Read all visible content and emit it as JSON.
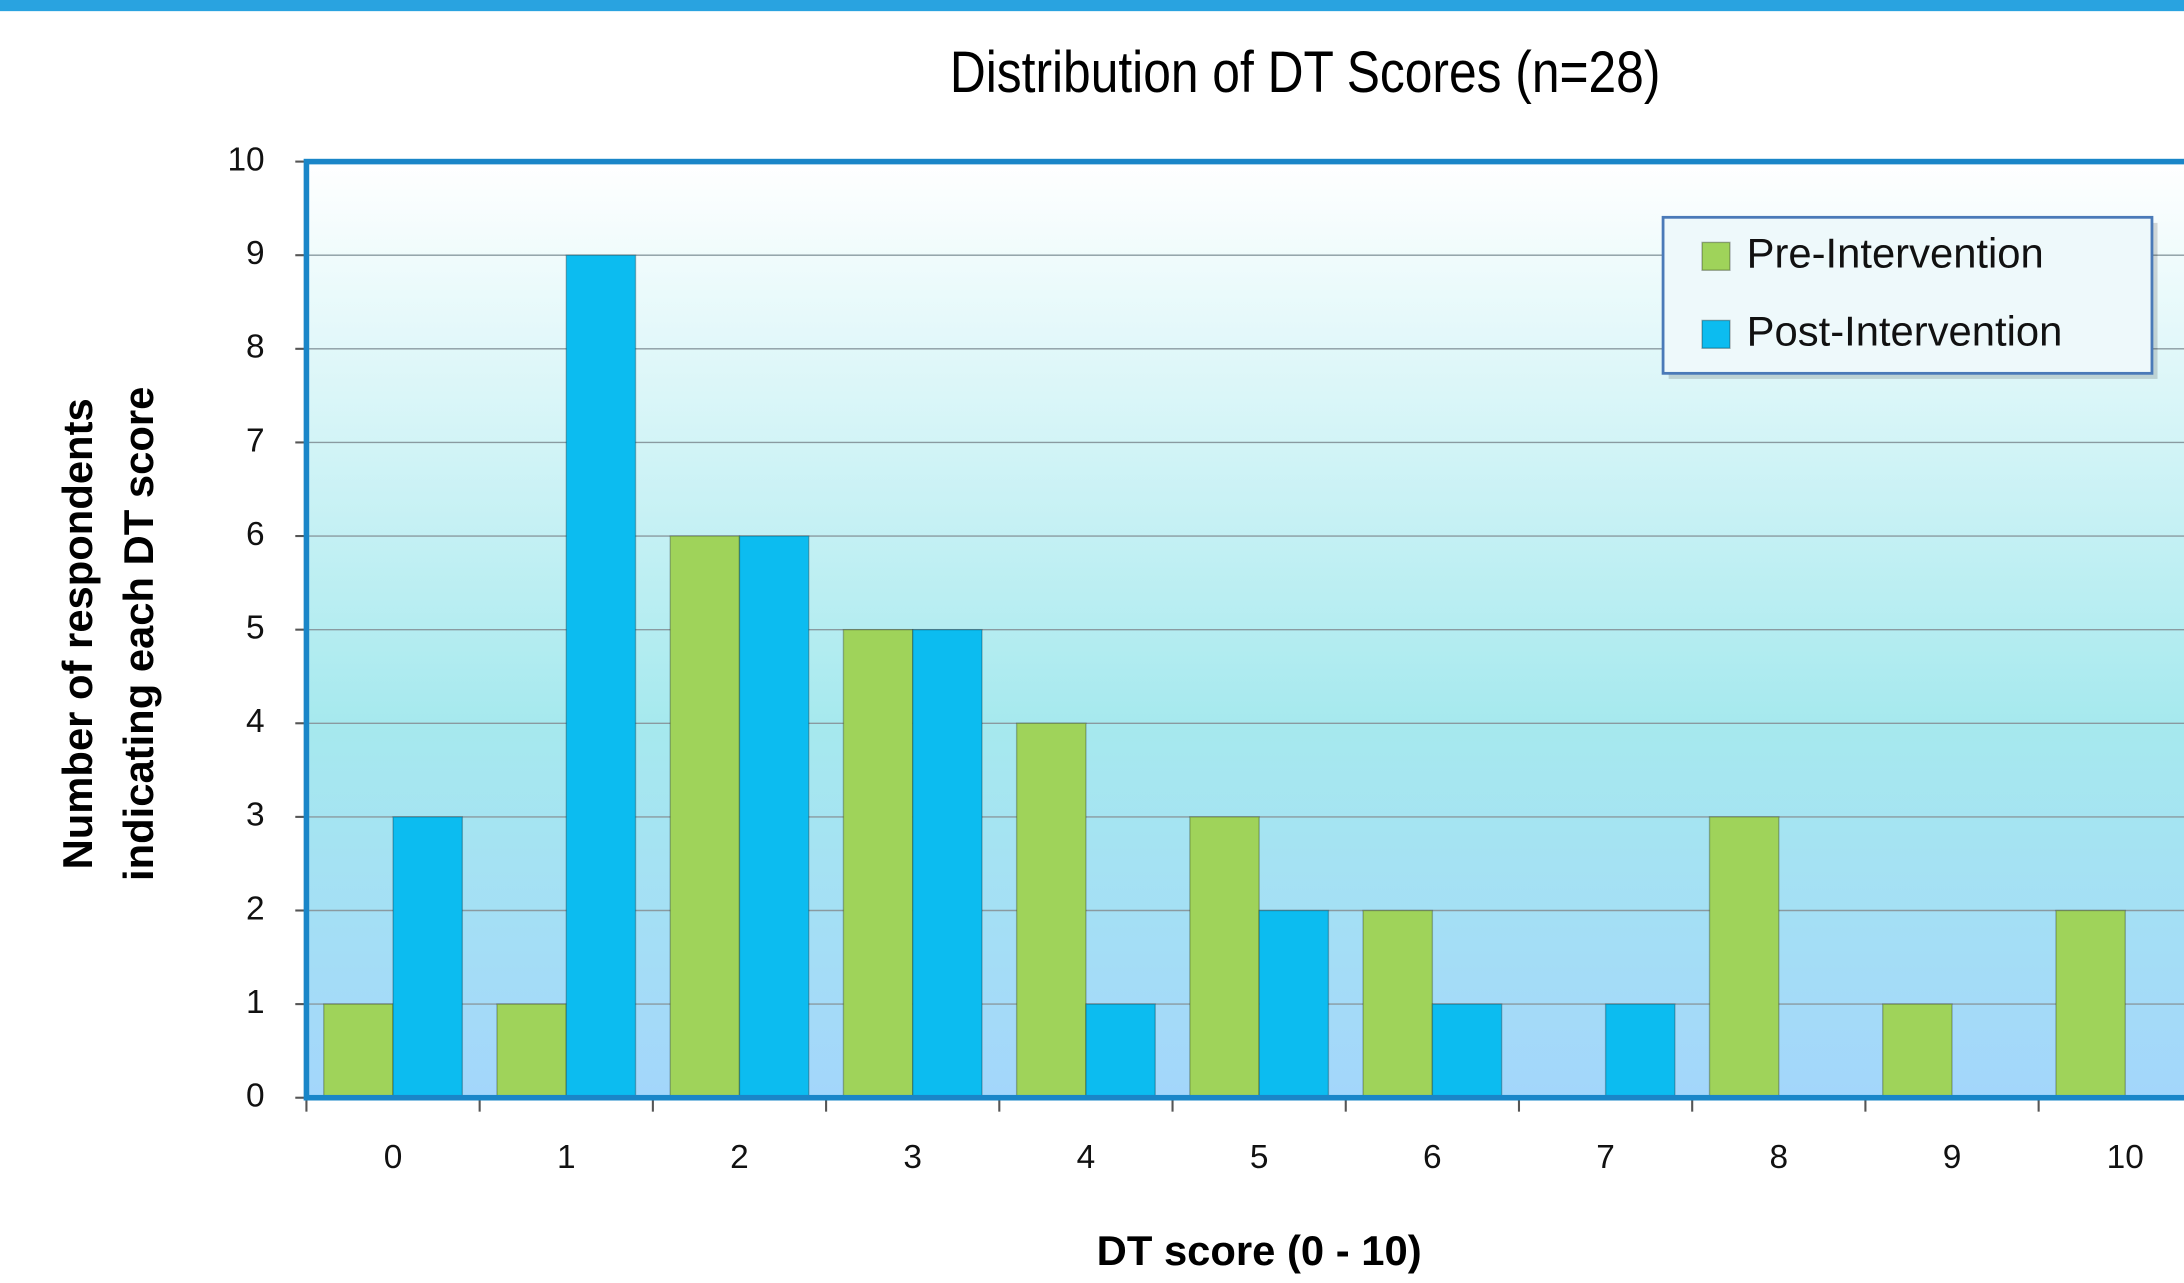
{
  "chart_data": {
    "type": "bar",
    "title": "Distribution of DT Scores (n=28)",
    "x_label": "DT score (0 - 10)",
    "y_label": [
      "Number of respondents",
      "indicating each DT score"
    ],
    "categories": [
      0,
      1,
      2,
      3,
      4,
      5,
      6,
      7,
      8,
      9,
      10
    ],
    "series": [
      {
        "name": "Pre-Intervention",
        "color": "#9fd35a",
        "values": [
          1,
          1,
          6,
          5,
          4,
          3,
          2,
          0,
          3,
          1,
          2
        ]
      },
      {
        "name": "Post-Intervention",
        "color": "#0cbcf0",
        "values": [
          3,
          9,
          6,
          5,
          1,
          2,
          1,
          1,
          0,
          0,
          0
        ]
      }
    ],
    "ylim": [
      0,
      10
    ],
    "yticks": [
      0,
      1,
      2,
      3,
      4,
      5,
      6,
      7,
      8,
      9,
      10
    ],
    "grid": true,
    "legend": "top-right"
  }
}
